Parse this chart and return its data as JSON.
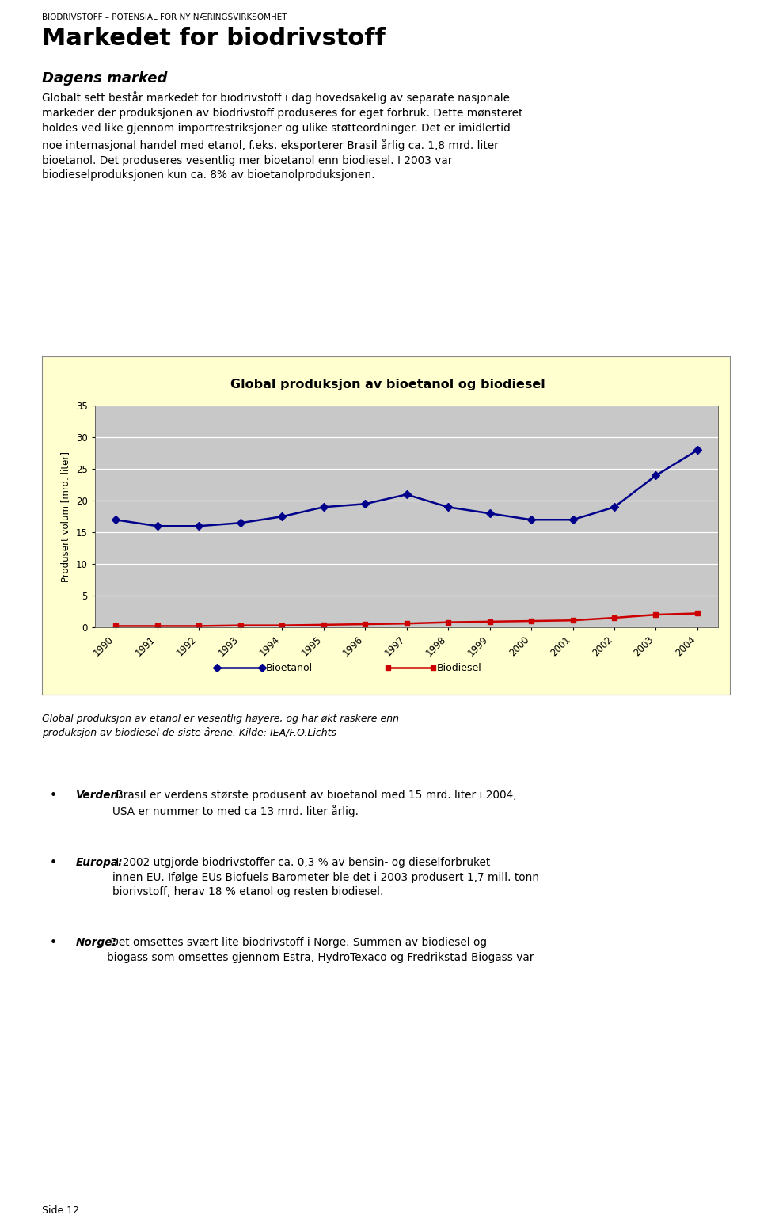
{
  "title": "Global produksjon av bioetanol og biodiesel",
  "ylabel": "Produsert volum [mrd. liter]",
  "years": [
    1990,
    1991,
    1992,
    1993,
    1994,
    1995,
    1996,
    1997,
    1998,
    1999,
    2000,
    2001,
    2002,
    2003,
    2004
  ],
  "bioetanol": [
    17.0,
    16.0,
    16.0,
    16.5,
    17.5,
    19.0,
    19.5,
    21.0,
    19.0,
    18.0,
    17.0,
    17.0,
    19.0,
    24.0,
    28.0
  ],
  "biodiesel": [
    0.2,
    0.2,
    0.2,
    0.3,
    0.3,
    0.4,
    0.5,
    0.6,
    0.8,
    0.9,
    1.0,
    1.1,
    1.5,
    2.0,
    2.2
  ],
  "bioetanol_color": "#00008B",
  "biodiesel_color": "#CC0000",
  "chart_bg": "#C8C8C8",
  "outer_bg": "#FFFFD0",
  "ylim": [
    0,
    35
  ],
  "yticks": [
    0,
    5,
    10,
    15,
    20,
    25,
    30,
    35
  ],
  "legend_bioetanol": "Bioetanol",
  "legend_biodiesel": "Biodiesel",
  "header_text": "BIODRIVSTOFF – POTENSIAL FOR NY NÆRINGSVIRKSOMHET",
  "main_title": "Markedet for biodrivstoff",
  "section_title": "Dagens marked",
  "body_text_1": "Globalt sett består markedet for biodrivstoff i dag hovedsakelig av separate nasjonale\nmarkeder der produksjonen av biodrivstoff produseres for eget forbruk. Dette mønsteret\nholdes ved like gjennom importrestriksjoner og ulike støtteordninger. Det er imidlertid\nnoe internasjonal handel med etanol, f.eks. eksporterer Brasil årlig ca. 1,8 mrd. liter\nbioetanol. Det produseres vesentlig mer bioetanol enn biodiesel. I 2003 var\nbiodieselproduksjonen kun ca. 8% av bioetanolproduksjonen.",
  "caption_text": "Global produksjon av etanol er vesentlig høyere, og har økt raskere enn\nproduksjon av biodiesel de siste årene. Kilde: IEA/F.O.Lichts",
  "bullet1_bold": "Verden:",
  "bullet1_rest": " Brasil er verdens største produsent av bioetanol med 15 mrd. liter i 2004,\nUSA er nummer to med ca 13 mrd. liter årlig.",
  "bullet2_bold": "Europa:",
  "bullet2_rest": " I 2002 utgjorde biodrivstoffer ca. 0,3 % av bensin- og dieselforbruket\ninnen EU. Ifølge EUs Biofuels Barometer ble det i 2003 produsert 1,7 mill. tonn\nbiorivstoff, herav 18 % etanol og resten biodiesel.",
  "bullet3_bold": "Norge:",
  "bullet3_rest": " Det omsettes svært lite biodrivstoff i Norge. Summen av biodiesel og\nbiogass som omsettes gjennom Estra, HydroTexaco og Fredrikstad Biogass var",
  "footer_text": "Side 12"
}
